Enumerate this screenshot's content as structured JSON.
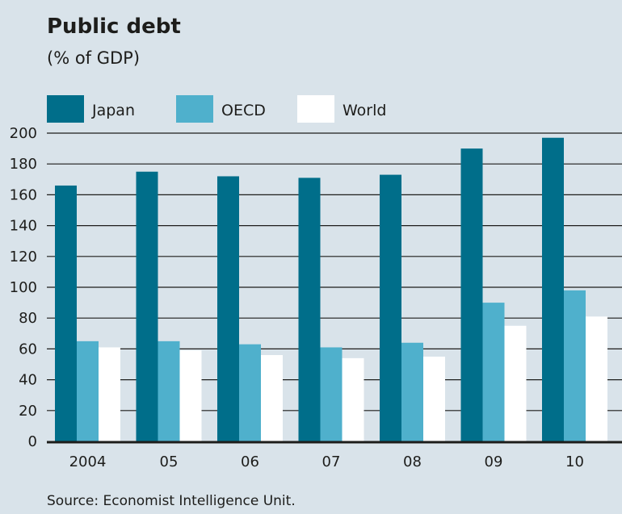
{
  "chart_data": {
    "type": "bar",
    "title": "Public debt",
    "subtitle": "(% of GDP)",
    "categories": [
      "2004",
      "05",
      "06",
      "07",
      "08",
      "09",
      "10"
    ],
    "series": [
      {
        "name": "Japan",
        "color": "#006e8a",
        "values": [
          166,
          175,
          172,
          171,
          173,
          190,
          197
        ]
      },
      {
        "name": "OECD",
        "color": "#4fb0cc",
        "values": [
          65,
          65,
          63,
          61,
          64,
          90,
          98
        ]
      },
      {
        "name": "World",
        "color": "#ffffff",
        "values": [
          61,
          59,
          56,
          54,
          55,
          75,
          81
        ]
      }
    ],
    "ylim": [
      0,
      200
    ],
    "yticks": [
      0,
      20,
      40,
      60,
      80,
      100,
      120,
      140,
      160,
      180,
      200
    ],
    "grid": true,
    "legend_position": "top-left",
    "source": "Source: Economist Intelligence Unit."
  }
}
